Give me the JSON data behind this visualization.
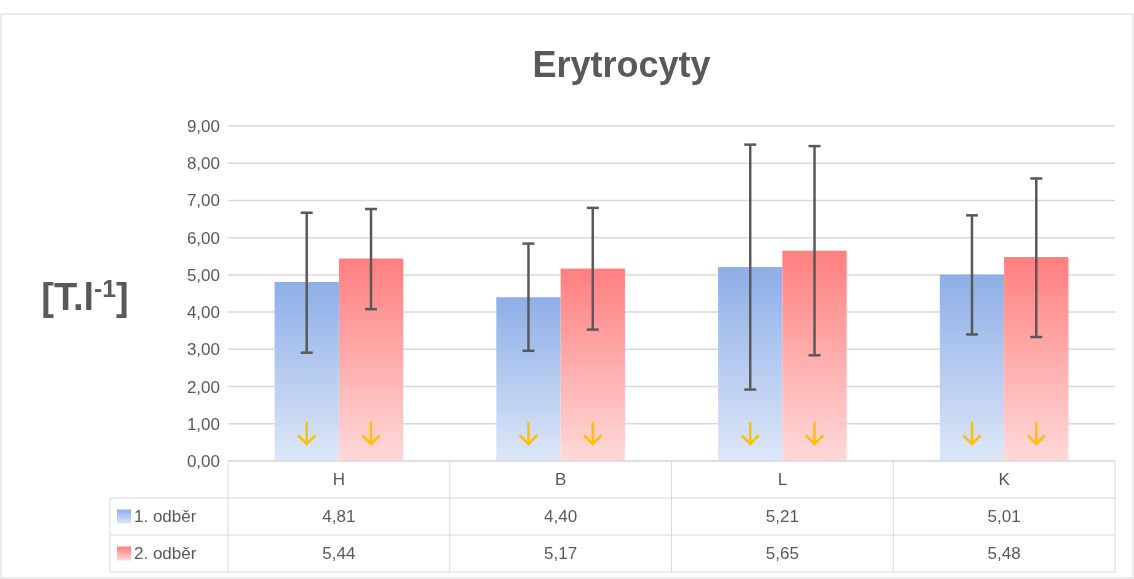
{
  "chart_data": {
    "type": "bar",
    "title": "Erytrocyty",
    "ylabel": "[T.l$^{-1}$]",
    "categories": [
      "H",
      "B",
      "L",
      "K"
    ],
    "series": [
      {
        "name": "1. odběr",
        "color": "#8eaee8",
        "values": [
          4.81,
          4.4,
          5.21,
          5.01
        ],
        "value_labels": [
          "4,81",
          "4,40",
          "5,21",
          "5,01"
        ],
        "errors": [
          [
            2.91,
            6.67
          ],
          [
            2.96,
            5.84
          ],
          [
            1.92,
            8.5
          ],
          [
            3.4,
            6.6
          ]
        ]
      },
      {
        "name": "2. odběr",
        "color": "#ff7f7f",
        "values": [
          5.44,
          5.17,
          5.65,
          5.48
        ],
        "value_labels": [
          "5,44",
          "5,17",
          "5,65",
          "5,48"
        ],
        "errors": [
          [
            4.08,
            6.77
          ],
          [
            3.53,
            6.8
          ],
          [
            2.84,
            8.46
          ],
          [
            3.33,
            7.59
          ]
        ]
      }
    ],
    "ylim": [
      0,
      9
    ],
    "yticks": [
      {
        "value": 0,
        "label": "0,00"
      },
      {
        "value": 1,
        "label": "1,00"
      },
      {
        "value": 2,
        "label": "2,00"
      },
      {
        "value": 3,
        "label": "3,00"
      },
      {
        "value": 4,
        "label": "4,00"
      },
      {
        "value": 5,
        "label": "5,00"
      },
      {
        "value": 6,
        "label": "6,00"
      },
      {
        "value": 7,
        "label": "7,00"
      },
      {
        "value": 8,
        "label": "8,00"
      },
      {
        "value": 9,
        "label": "9,00"
      }
    ],
    "grid": "y",
    "legend": "bottom"
  }
}
